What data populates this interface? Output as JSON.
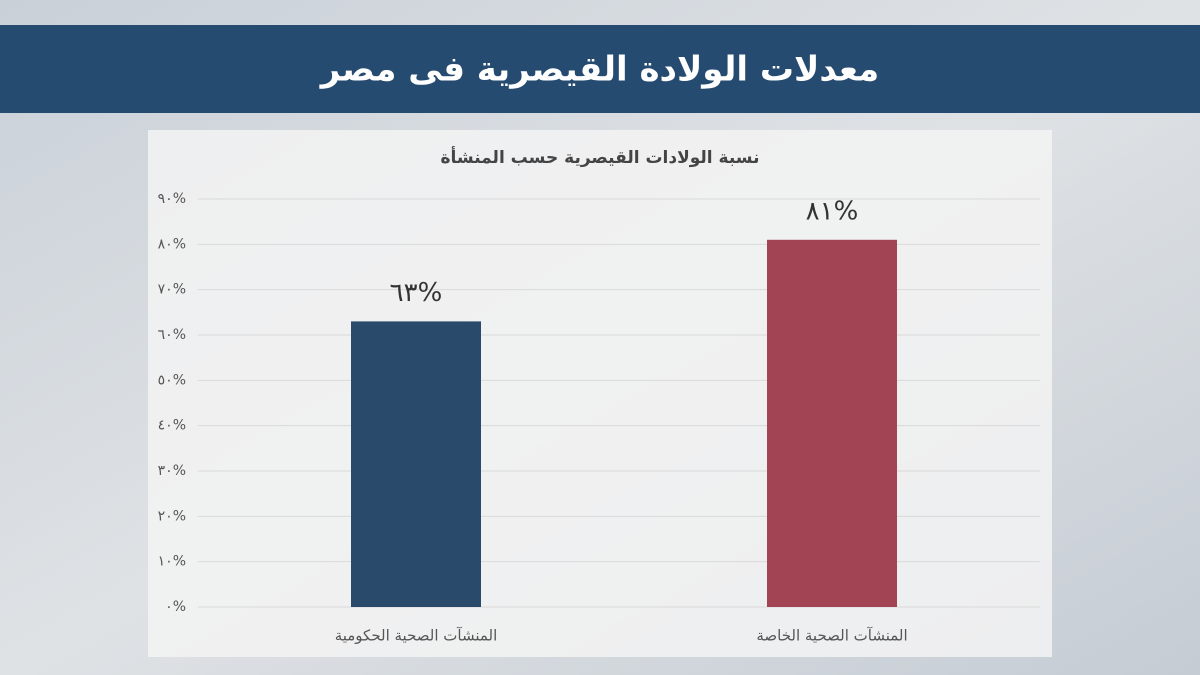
{
  "header": {
    "title": "معدلات الولادة القيصرية فى مصر"
  },
  "chart_data": {
    "type": "bar",
    "title": "نسبة الولادات القيصرية حسب المنشأة",
    "categories": [
      "المنشآت الصحية الحكومية",
      "المنشآت الصحية الخاصة"
    ],
    "values": [
      63,
      81
    ],
    "value_labels": [
      "٦٣%",
      "٨١%"
    ],
    "colors": [
      "#2a4a6b",
      "#a34455"
    ],
    "ylim": [
      0,
      90
    ],
    "yticks": [
      {
        "value": 0,
        "label": "٠%"
      },
      {
        "value": 10,
        "label": "١٠%"
      },
      {
        "value": 20,
        "label": "٢٠%"
      },
      {
        "value": 30,
        "label": "٣٠%"
      },
      {
        "value": 40,
        "label": "٤٠%"
      },
      {
        "value": 50,
        "label": "٥٠%"
      },
      {
        "value": 60,
        "label": "٦٠%"
      },
      {
        "value": 70,
        "label": "٧٠%"
      },
      {
        "value": 80,
        "label": "٨٠%"
      },
      {
        "value": 90,
        "label": "٩٠%"
      }
    ],
    "grid": true
  }
}
